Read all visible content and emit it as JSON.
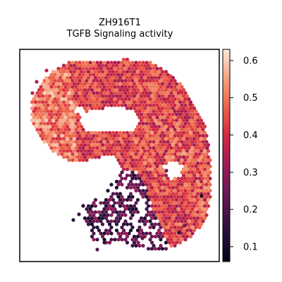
{
  "chart_data": {
    "type": "scatter",
    "title_lines": [
      "ZH916T1",
      "TGFB Signaling activity"
    ],
    "xlabel": "",
    "ylabel": "",
    "grid": false,
    "axis_ticks_visible": false,
    "colorbar": {
      "colormap": "rocket",
      "range": [
        0.06,
        0.63
      ],
      "ticks": [
        "0.1",
        "0.2",
        "0.3",
        "0.4",
        "0.5",
        "0.6"
      ],
      "tick_values": [
        0.1,
        0.2,
        0.3,
        0.4,
        0.5,
        0.6
      ]
    },
    "spot_value_regions": [
      {
        "region": "upper arc",
        "value_range": [
          0.35,
          0.52
        ]
      },
      {
        "region": "left lobe",
        "value_range": [
          0.4,
          0.6
        ]
      },
      {
        "region": "right lobe",
        "value_range": [
          0.32,
          0.55
        ]
      },
      {
        "region": "lower scattered region",
        "value_range": [
          0.08,
          0.32
        ]
      }
    ]
  }
}
